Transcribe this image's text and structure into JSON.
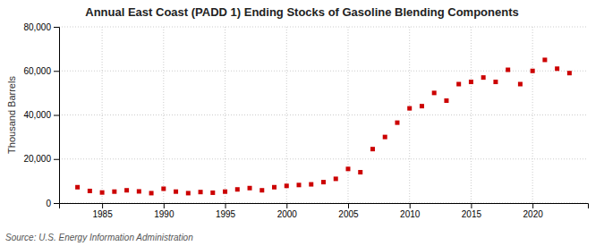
{
  "chart_data": {
    "type": "scatter",
    "title": "Annual East Coast (PADD 1) Ending Stocks of Gasoline Blending Components",
    "ylabel": "Thousand Barrels",
    "annotation": "Source: U.S. Energy Information Administration",
    "x": [
      1983,
      1984,
      1985,
      1986,
      1987,
      1988,
      1989,
      1990,
      1991,
      1992,
      1993,
      1994,
      1995,
      1996,
      1997,
      1998,
      1999,
      2000,
      2001,
      2002,
      2003,
      2004,
      2005,
      2006,
      2007,
      2008,
      2009,
      2010,
      2011,
      2012,
      2013,
      2014,
      2015,
      2016,
      2017,
      2018,
      2019,
      2020,
      2021,
      2022,
      2023
    ],
    "values": [
      7200,
      5500,
      4800,
      5200,
      5800,
      5300,
      4500,
      6500,
      5200,
      4500,
      5000,
      4700,
      5200,
      6200,
      6800,
      5800,
      7200,
      7800,
      8200,
      8500,
      9500,
      11000,
      15500,
      14000,
      24500,
      30000,
      36500,
      43000,
      44000,
      50000,
      46500,
      54000,
      55000,
      57000,
      55000,
      60500,
      54000,
      60000,
      65000,
      61000,
      59000
    ],
    "color": "#cc0000",
    "marker": "square",
    "xlim": [
      1981.5,
      2024.5
    ],
    "xticks": [
      1985,
      1990,
      1995,
      2000,
      2005,
      2010,
      2015,
      2020
    ],
    "ylim": [
      0,
      80000
    ],
    "yticks": [
      0,
      {
        "value": 20000,
        "label": "20,000"
      },
      {
        "value": 40000,
        "label": "40,000"
      },
      {
        "value": 60000,
        "label": "60,000"
      },
      {
        "value": 80000,
        "label": "80,000"
      }
    ],
    "grid": true
  }
}
